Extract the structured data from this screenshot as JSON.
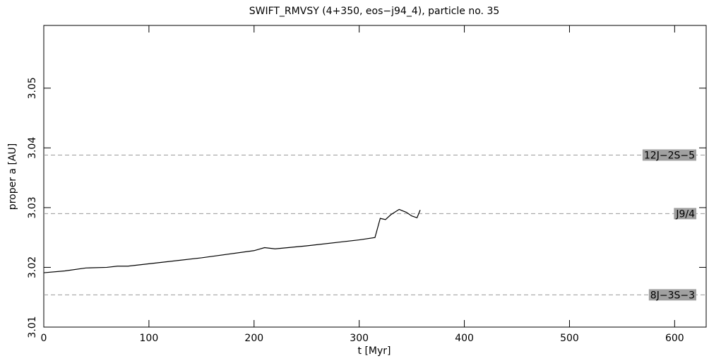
{
  "chart_data": {
    "type": "line",
    "title": "SWIFT_RMVSY (4+350, eos−j94_4), particle no. 35",
    "x_label": "t [Myr]",
    "y_label": "proper a [AU]",
    "xlim": [
      0,
      630
    ],
    "ylim": [
      3.01,
      3.0605
    ],
    "xticks": [
      0,
      100,
      200,
      300,
      400,
      500,
      600
    ],
    "yticks": [
      3.01,
      3.02,
      3.03,
      3.04,
      3.05
    ],
    "series": [
      {
        "color": "#000000",
        "x": [
          0,
          20,
          40,
          60,
          70,
          80,
          100,
          150,
          200,
          210,
          220,
          250,
          300,
          315,
          320,
          325,
          330,
          338,
          345,
          350,
          355,
          358
        ],
        "values": [
          3.0191,
          3.0194,
          3.0199,
          3.02,
          3.0202,
          3.0202,
          3.0206,
          3.0216,
          3.0228,
          3.0233,
          3.0231,
          3.0236,
          3.0246,
          3.025,
          3.0282,
          3.028,
          3.0288,
          3.0297,
          3.0292,
          3.0286,
          3.0283,
          3.0296
        ]
      }
    ],
    "resonances": [
      {
        "label": "12J−2S−5",
        "value": 3.0388
      },
      {
        "label": "J9/4",
        "value": 3.029
      },
      {
        "label": "8J−3S−3",
        "value": 3.0154
      }
    ]
  }
}
